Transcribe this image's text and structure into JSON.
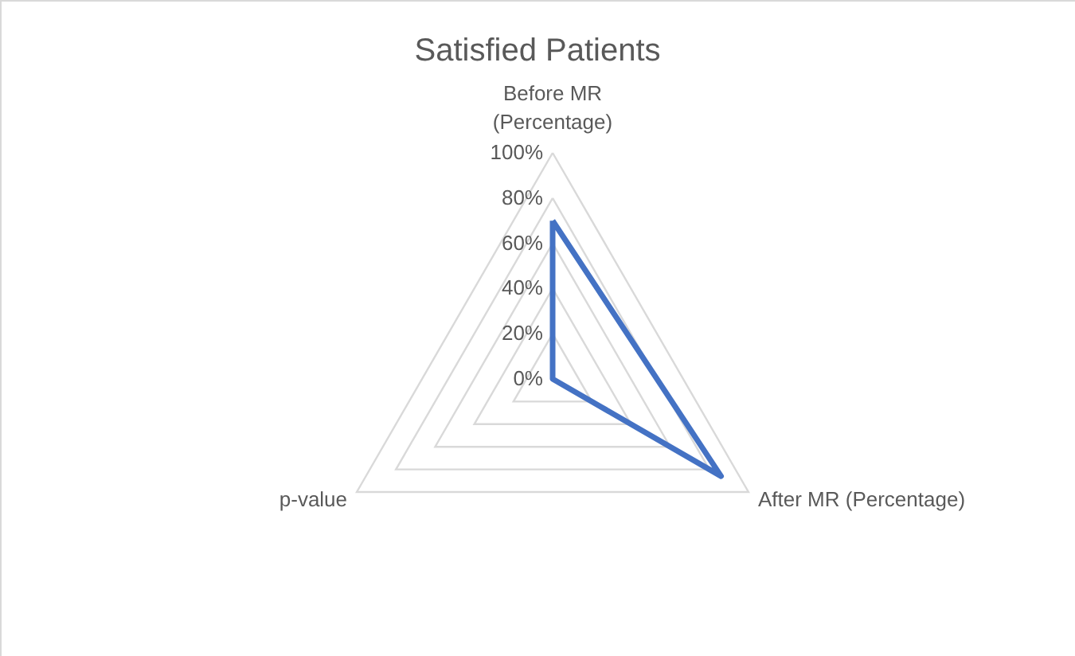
{
  "chart_data": {
    "type": "radar",
    "title": "Satisfied Patients",
    "categories": [
      "Before MR (Percentage)",
      "After MR (Percentage)",
      "p-value"
    ],
    "series": [
      {
        "color": "#4472c4",
        "values": [
          70,
          86,
          0
        ]
      }
    ],
    "ylim": [
      0,
      100
    ],
    "yticks": [
      {
        "value": 0,
        "label": "0%"
      },
      {
        "value": 20,
        "label": "20%"
      },
      {
        "value": 40,
        "label": "40%"
      },
      {
        "value": 60,
        "label": "60%"
      },
      {
        "value": 80,
        "label": "80%"
      },
      {
        "value": 100,
        "label": "100%"
      }
    ],
    "grid": true,
    "marker": "none",
    "line_style": "solid"
  }
}
